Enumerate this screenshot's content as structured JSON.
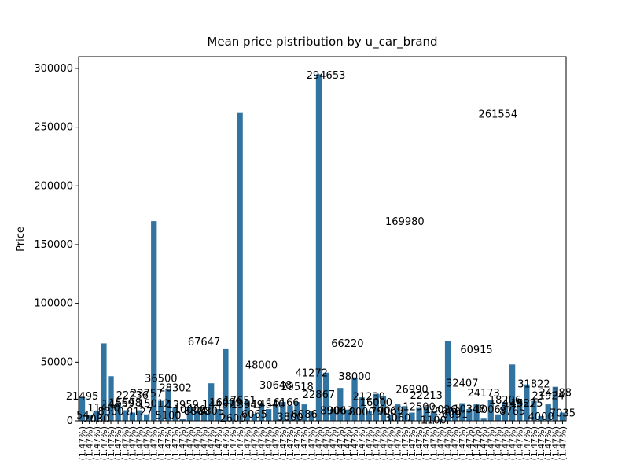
{
  "chart_data": {
    "type": "bar",
    "title": "Mean price pistribution by u_car_brand",
    "ylabel": "Price",
    "color": "#3274a1",
    "categories": [
      "(1.47%)",
      "(1.47%)",
      "(1.47%)",
      "(1.47%)",
      "(1.47%)",
      "(1.47%)",
      "(1.47%)",
      "(1.47%)",
      "(1.47%)",
      "(1.47%)",
      "(1.47%)",
      "(1.47%)",
      "(1.47%)",
      "(1.47%)",
      "(1.47%)",
      "(1.47%)",
      "(1.47%)",
      "(1.47%)",
      "(1.47%)",
      "(1.47%)",
      "(1.47%)",
      "(1.47%)",
      "(1.47%)",
      "(1.47%)",
      "(1.47%)",
      "(1.47%)",
      "(1.47%)",
      "(1.47%)",
      "(1.47%)",
      "(1.47%)",
      "(1.47%)",
      "(1.47%)",
      "(1.47%)",
      "(1.47%)",
      "(1.47%)",
      "(1.47%)",
      "(1.47%)",
      "(1.47%)",
      "(1.47%)",
      "(1.47%)",
      "(1.47%)",
      "(1.47%)",
      "(1.47%)",
      "(1.47%)",
      "(1.47%)",
      "(1.47%)",
      "(1.47%)",
      "(1.47%)",
      "(1.47%)",
      "(1.47%)",
      "(1.47%)",
      "(1.47%)",
      "(1.47%)",
      "(1.47%)",
      "(1.47%)",
      "(1.47%)",
      "(1.47%)",
      "(1.47%)",
      "(1.47%)",
      "(1.47%)",
      "(1.47%)",
      "(1.47%)",
      "(1.47%)",
      "(1.47%)",
      "(1.47%)",
      "(1.47%)",
      "(1.47%)",
      "(1.47%)"
    ],
    "values": [
      20000,
      5000,
      8000,
      66000,
      38000,
      15000,
      9000,
      7000,
      9000,
      5500,
      170000,
      17000,
      27000,
      12000,
      1500,
      12000,
      9000,
      8500,
      32000,
      10000,
      61000,
      17000,
      262000,
      17000,
      6000,
      15000,
      10000,
      14500,
      16000,
      13000,
      16000,
      14000,
      8000,
      295000,
      41000,
      10000,
      28000,
      9500,
      37000,
      20000,
      8000,
      23000,
      21000,
      5000,
      14000,
      12500,
      7000,
      11000,
      12000,
      8000,
      1500,
      68000,
      9000,
      15000,
      10000,
      14000,
      2500,
      18000,
      5500,
      16000,
      48000,
      18000,
      31000,
      17000,
      4000,
      14000,
      29000,
      7000
    ],
    "annotations": [
      21495,
      5475,
      2080,
      11480,
      8300,
      14659,
      15598,
      22236,
      8127,
      23757,
      15012,
      36500,
      5100,
      28302,
      13959,
      10000,
      8800,
      67647,
      8805,
      14467,
      16009,
      2600,
      17651,
      13949,
      6065,
      48000,
      14540,
      30648,
      16166,
      3800,
      29518,
      6086,
      41272,
      22867,
      294653,
      8900,
      9063,
      66220,
      38000,
      8000,
      21230,
      16000,
      7900,
      9069,
      3060,
      169980,
      26990,
      12500,
      22213,
      1100,
      10026,
      8000,
      6091,
      32407,
      10348,
      60915,
      24173,
      10069,
      261554,
      18206,
      8765,
      14952,
      15275,
      31822,
      4000,
      21924,
      24388,
      7035
    ],
    "ylim": [
      0,
      310000
    ],
    "yticks": [
      0,
      50000,
      100000,
      150000,
      200000,
      250000,
      300000
    ]
  }
}
